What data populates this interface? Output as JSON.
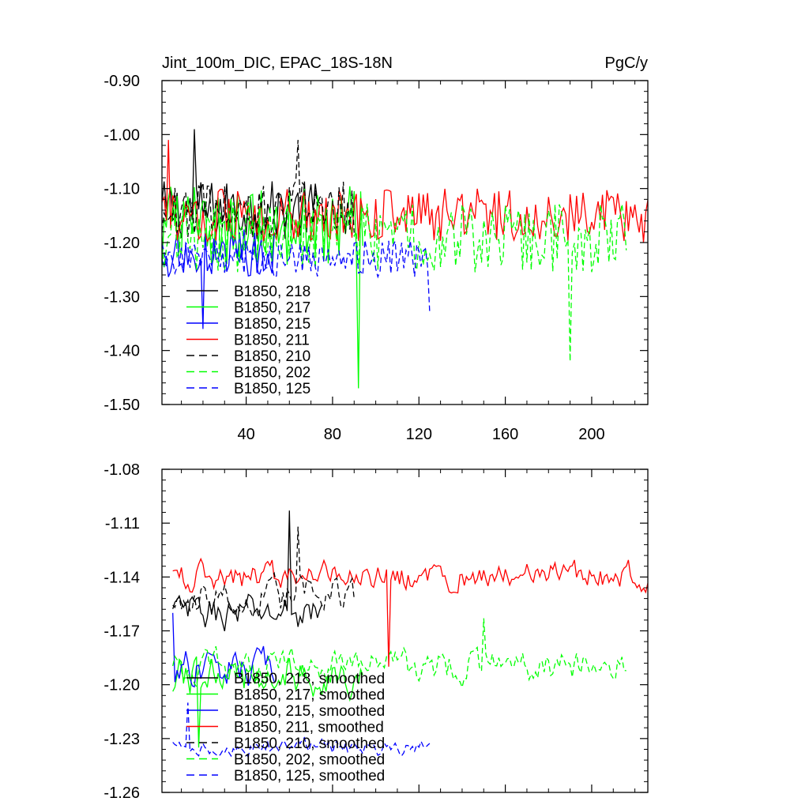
{
  "chart_data": [
    {
      "type": "line",
      "title": "Jint_100m_DIC, EPAC_18S-18N",
      "units": "PgC/y",
      "xlabel": "",
      "ylabel": "",
      "xlim": [
        1,
        226
      ],
      "ylim": [
        -1.5,
        -0.9
      ],
      "xticks": [
        40,
        80,
        120,
        160,
        200
      ],
      "yticks": [
        -1.5,
        -1.4,
        -1.3,
        -1.2,
        -1.1,
        -1.0,
        -0.9
      ],
      "ytick_labels": [
        "-1.50",
        "-1.40",
        "-1.30",
        "-1.20",
        "-1.10",
        "-1.00",
        "-0.90"
      ],
      "legend_position": "bottom-left",
      "series": [
        {
          "name": "B1850, 218",
          "color": "#000000",
          "dash": "solid",
          "start": 1,
          "length": 75,
          "center": -1.14,
          "amp": 0.055,
          "spike_x": 16,
          "spike_y": -0.99
        },
        {
          "name": "B1850, 217",
          "color": "#00ff00",
          "dash": "solid",
          "start": 1,
          "length": 94,
          "center": -1.17,
          "amp": 0.075,
          "spike_x": 92,
          "spike_y": -1.47
        },
        {
          "name": "B1850, 215",
          "color": "#0000ff",
          "dash": "solid",
          "start": 1,
          "length": 53,
          "center": -1.22,
          "amp": 0.045,
          "spike_x": 20,
          "spike_y": -1.36
        },
        {
          "name": "B1850, 211",
          "color": "#ff0000",
          "dash": "solid",
          "start": 1,
          "length": 226,
          "center": -1.15,
          "amp": 0.05,
          "spike_x": 4,
          "spike_y": -1.01
        },
        {
          "name": "B1850, 210",
          "color": "#000000",
          "dash": "dash",
          "start": 1,
          "length": 90,
          "center": -1.14,
          "amp": 0.055,
          "spike_x": 64,
          "spike_y": -1.01
        },
        {
          "name": "B1850, 202",
          "color": "#00ff00",
          "dash": "dash",
          "start": 1,
          "length": 216,
          "center": -1.19,
          "amp": 0.065,
          "spike_x": 190,
          "spike_y": -1.42
        },
        {
          "name": "B1850, 125",
          "color": "#0000ff",
          "dash": "dash",
          "start": 1,
          "length": 125,
          "center": -1.23,
          "amp": 0.035,
          "spike_x": 125,
          "spike_y": -1.33
        }
      ]
    },
    {
      "type": "line",
      "title": "",
      "xlabel": "",
      "ylabel": "",
      "xlim": [
        1,
        226
      ],
      "ylim": [
        -1.26,
        -1.08
      ],
      "xticks": [
        40,
        80,
        120,
        160,
        200
      ],
      "yticks": [
        -1.26,
        -1.23,
        -1.2,
        -1.17,
        -1.14,
        -1.11,
        -1.08
      ],
      "ytick_labels": [
        "-1.26",
        "-1.23",
        "-1.20",
        "-1.17",
        "-1.14",
        "-1.11",
        "-1.08"
      ],
      "legend_position": "bottom-left",
      "series": [
        {
          "name": "B1850, 218, smoothed",
          "color": "#000000",
          "dash": "solid",
          "start": 6,
          "length": 70,
          "center": -1.16,
          "amp": 0.018,
          "spike_x": 60,
          "spike_y": -1.103
        },
        {
          "name": "B1850, 217, smoothed",
          "color": "#00ff00",
          "dash": "solid",
          "start": 6,
          "length": 89,
          "center": -1.195,
          "amp": 0.02,
          "spike_x": 18,
          "spike_y": -1.235
        },
        {
          "name": "B1850, 215, smoothed",
          "color": "#0000ff",
          "dash": "solid",
          "start": 6,
          "length": 48,
          "center": -1.19,
          "amp": 0.018,
          "spike_x": 6,
          "spike_y": -1.16
        },
        {
          "name": "B1850, 211, smoothed",
          "color": "#ff0000",
          "dash": "solid",
          "start": 6,
          "length": 221,
          "center": -1.14,
          "amp": 0.014,
          "spike_x": 106,
          "spike_y": -1.19
        },
        {
          "name": "B1850, 210, smoothed",
          "color": "#000000",
          "dash": "dash",
          "start": 6,
          "length": 85,
          "center": -1.15,
          "amp": 0.018,
          "spike_x": 64,
          "spike_y": -1.112
        },
        {
          "name": "B1850, 202, smoothed",
          "color": "#00ff00",
          "dash": "dash",
          "start": 6,
          "length": 211,
          "center": -1.19,
          "amp": 0.016,
          "spike_x": 150,
          "spike_y": -1.163
        },
        {
          "name": "B1850, 125, smoothed",
          "color": "#0000ff",
          "dash": "dash",
          "start": 6,
          "length": 120,
          "center": -1.235,
          "amp": 0.008,
          "spike_x": 13,
          "spike_y": -1.21
        }
      ]
    }
  ]
}
